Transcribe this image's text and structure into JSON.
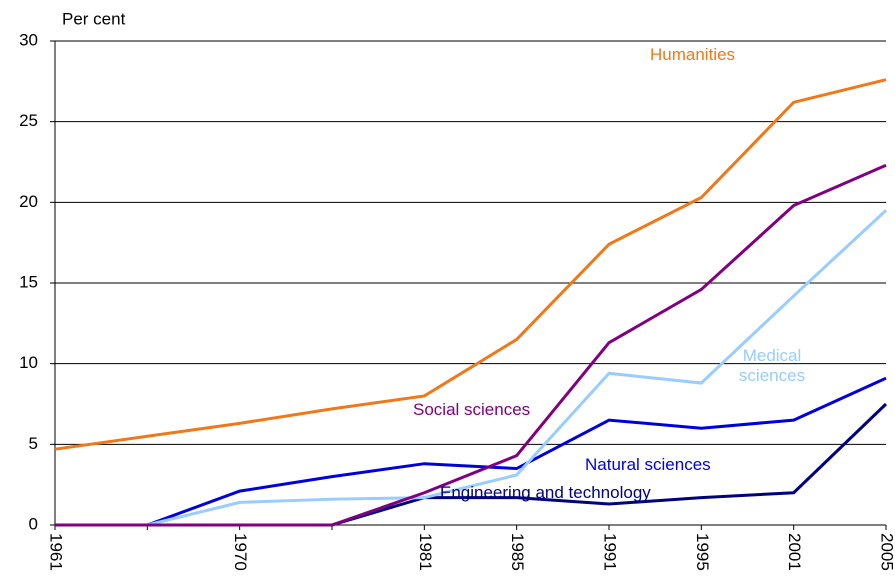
{
  "chart_data": {
    "type": "line",
    "y_label": "Per cent",
    "categories": [
      "1961",
      null,
      "1970",
      null,
      "1981",
      "1985",
      "1991",
      "1995",
      "2001",
      "2005"
    ],
    "series": [
      {
        "name": "Humanities",
        "color": "#f07818",
        "values": [
          4.7,
          5.5,
          6.3,
          7.2,
          8.0,
          11.5,
          17.4,
          20.3,
          26.2,
          27.6
        ]
      },
      {
        "name": "Social sciences",
        "color": "#800080",
        "values": [
          0,
          0,
          0,
          0,
          2.0,
          4.3,
          11.3,
          14.6,
          19.8,
          22.3
        ]
      },
      {
        "name": "Medical sciences",
        "color": "#99ccff",
        "values": [
          0,
          0,
          1.4,
          1.6,
          1.7,
          3.1,
          9.4,
          8.8,
          14.2,
          19.5
        ]
      },
      {
        "name": "Natural sciences",
        "color": "#0000dd",
        "values": [
          0,
          0,
          2.1,
          3.0,
          3.8,
          3.5,
          6.5,
          6.0,
          6.5,
          9.1
        ]
      },
      {
        "name": "Engineering and technology",
        "color": "#000080",
        "values": [
          0,
          0,
          0,
          0,
          1.7,
          1.7,
          1.3,
          1.7,
          2.0,
          7.5
        ]
      }
    ],
    "ylim": [
      0,
      30
    ],
    "yticks": [
      0,
      5,
      10,
      15,
      20,
      25,
      30
    ],
    "grid": true
  }
}
